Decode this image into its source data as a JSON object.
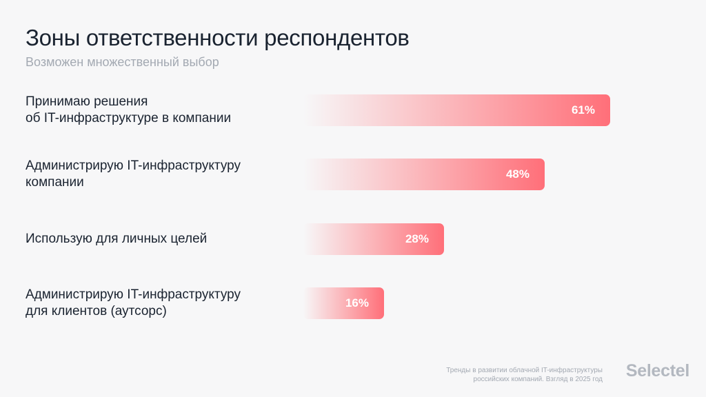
{
  "header": {
    "title": "Зоны ответственности респондентов",
    "subtitle": "Возможен множественный выбор"
  },
  "chart_data": {
    "type": "bar",
    "orientation": "horizontal",
    "title": "Зоны ответственности респондентов",
    "subtitle": "Возможен множественный выбор",
    "categories": [
      [
        "Принимаю решения",
        "об IT-инфраструктуре в компании"
      ],
      [
        "Администрирую IT-инфраструктуру",
        "компании"
      ],
      [
        "Использую для личных целей"
      ],
      [
        "Администрирую IT-инфраструктуру",
        "для клиентов (аутсорс)"
      ]
    ],
    "values": [
      61,
      48,
      28,
      16
    ],
    "value_labels": [
      "61%",
      "48%",
      "28%",
      "16%"
    ],
    "unit": "%",
    "bar_color": "#ff6f79",
    "xlim": [
      0,
      100
    ]
  },
  "footer": {
    "source_line1": "Тренды в развитии облачной IT-инфраструктуры",
    "source_line2": "российских компаний. Взгляд в 2025 год",
    "brand": "Selectel"
  }
}
